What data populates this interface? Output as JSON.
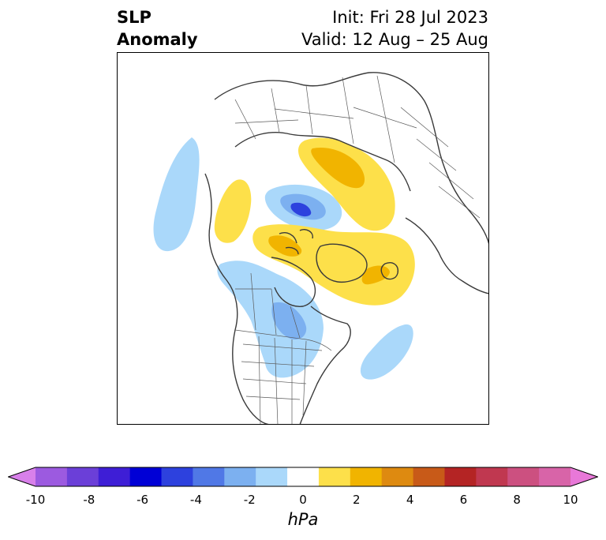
{
  "title": {
    "variable_line1": "SLP",
    "variable_line2": "Anomaly",
    "init": "Init: Fri 28 Jul 2023",
    "valid": "Valid: 12 Aug – 25 Aug"
  },
  "colorbar": {
    "unit": "hPa",
    "tick_labels": [
      "-10",
      "-8",
      "-6",
      "-4",
      "-2",
      "0",
      "2",
      "4",
      "6",
      "8",
      "10"
    ],
    "colors": [
      "#d880ea",
      "#9c5ae0",
      "#6b3fd8",
      "#3e1ed6",
      "#0000d6",
      "#2d41de",
      "#5078e6",
      "#7cb0f0",
      "#aad8fa",
      "#ffffff",
      "#fde04a",
      "#f1b400",
      "#de8a10",
      "#c85a18",
      "#b42424",
      "#c03850",
      "#cc5080",
      "#d864a8",
      "#e878d8"
    ]
  },
  "map": {
    "projection": "polar-stereographic-north",
    "anomaly_colors": {
      "light_blue": "#aad8fa",
      "mid_blue": "#7cb0f0",
      "blue": "#5078e6",
      "dark_blue": "#2d41de",
      "yellow": "#fde04a",
      "orange": "#f1b400"
    }
  }
}
